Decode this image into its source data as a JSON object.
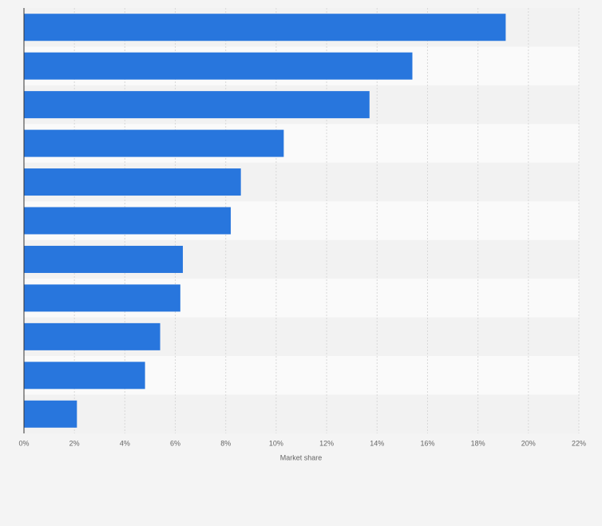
{
  "chart_data": {
    "type": "hbar",
    "categories": [
      null,
      null,
      null,
      null,
      null,
      null,
      null,
      null,
      null,
      null,
      null
    ],
    "values": [
      19.1,
      15.4,
      13.7,
      10.3,
      8.6,
      8.2,
      6.3,
      6.2,
      5.4,
      4.8,
      2.1
    ],
    "color": "#2876dd",
    "xlim": [
      0,
      22
    ],
    "xticks": [
      {
        "value": 0,
        "label": "0%"
      },
      {
        "value": 2,
        "label": "2%"
      },
      {
        "value": 4,
        "label": "4%"
      },
      {
        "value": 6,
        "label": "6%"
      },
      {
        "value": 8,
        "label": "8%"
      },
      {
        "value": 10,
        "label": "10%"
      },
      {
        "value": 12,
        "label": "12%"
      },
      {
        "value": 14,
        "label": "14%"
      },
      {
        "value": 16,
        "label": "16%"
      },
      {
        "value": 18,
        "label": "18%"
      },
      {
        "value": 20,
        "label": "20%"
      },
      {
        "value": 22,
        "label": "22%"
      }
    ],
    "xlabel": "Market share",
    "grid": true
  }
}
